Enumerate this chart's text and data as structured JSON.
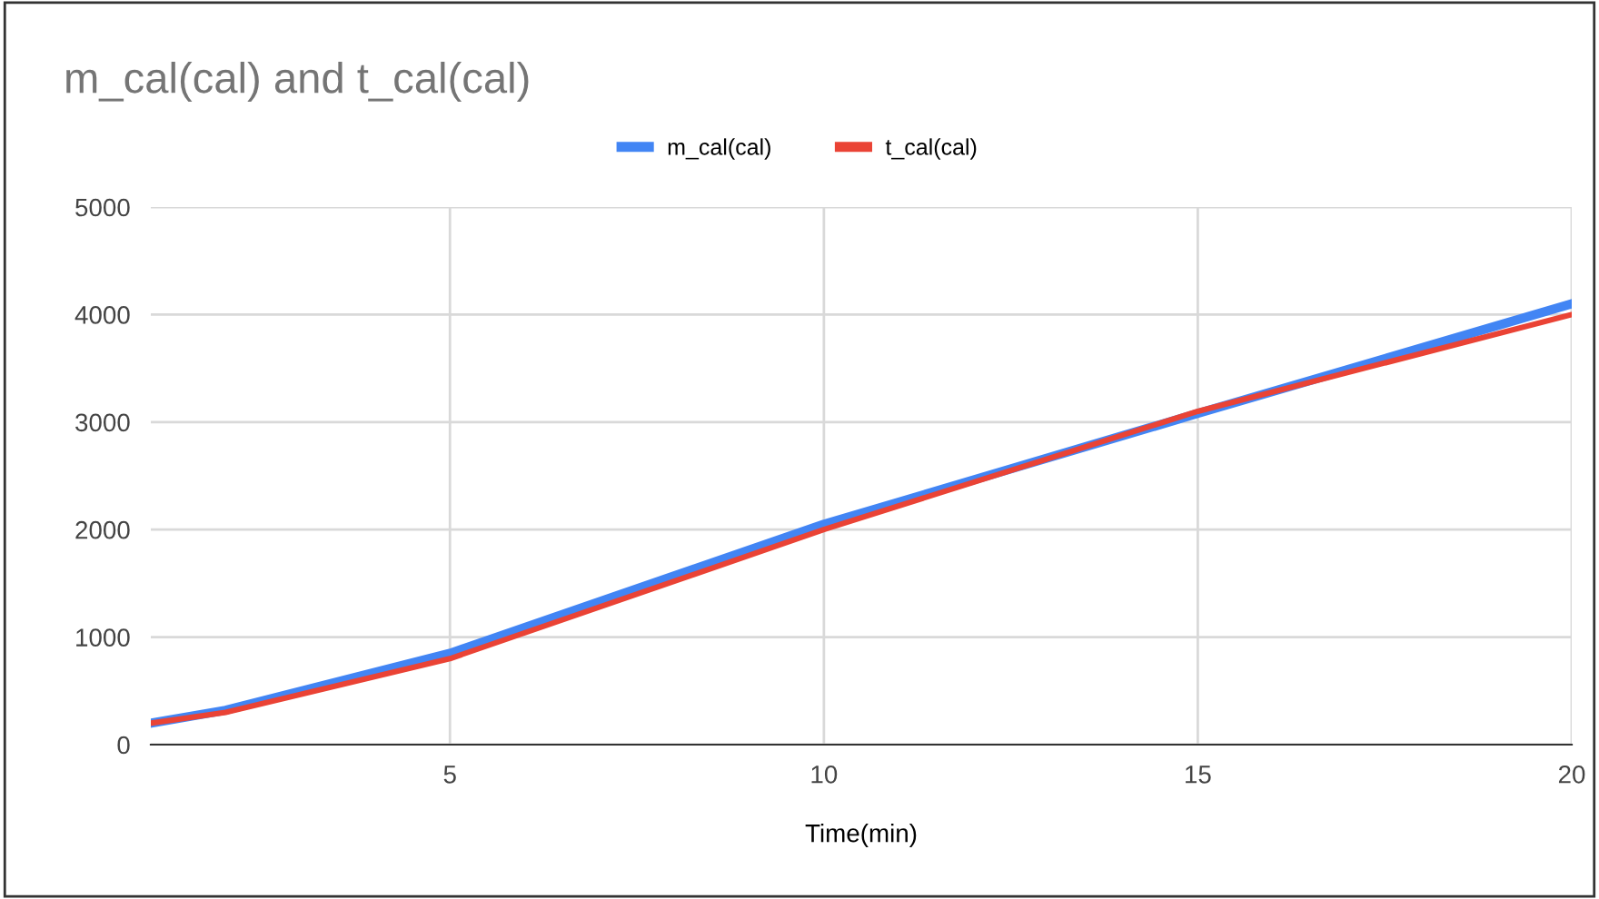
{
  "chart_data": {
    "type": "line",
    "title": "m_cal(cal) and t_cal(cal)",
    "xlabel": "Time(min)",
    "x": [
      1,
      2,
      5,
      10,
      15,
      20
    ],
    "series": [
      {
        "name": "m_cal(cal)",
        "color": "#4285f4",
        "values": [
          200,
          320,
          850,
          2050,
          3080,
          4100
        ]
      },
      {
        "name": "t_cal(cal)",
        "color": "#ea4335",
        "values": [
          200,
          300,
          800,
          2000,
          3100,
          4000
        ]
      }
    ],
    "xlim": [
      1,
      20
    ],
    "xticks": [
      5,
      10,
      15,
      20
    ],
    "ylim": [
      0,
      5000
    ],
    "yticks": [
      0,
      1000,
      2000,
      3000,
      4000,
      5000
    ],
    "grid": true,
    "legend": "top",
    "marker": "none",
    "line_style": "solid"
  }
}
